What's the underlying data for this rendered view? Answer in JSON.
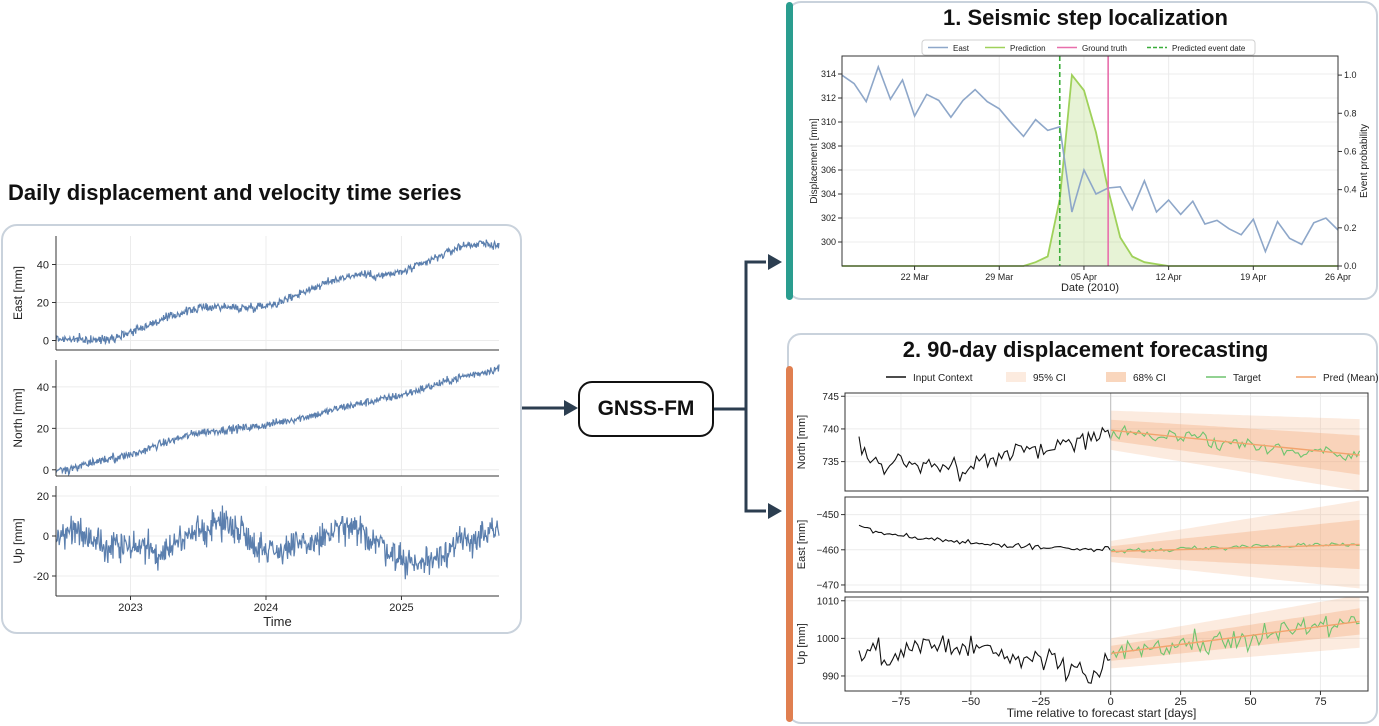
{
  "left_title": "Daily displacement and velocity time series",
  "model_label": "GNSS-FM",
  "colors": {
    "series_blue": "#5b7fae",
    "east_light": "#8ea7c9",
    "prediction_green": "#9fd15a",
    "ground_truth": "#e86fab",
    "predicted_date": "#3aad3a",
    "input_black": "#111111",
    "target_green": "#6ec46e",
    "pred_orange": "#f2a36d",
    "teal_accent": "#2a9d8f",
    "orange_accent": "#e07f50",
    "arrow": "#2c3e50"
  },
  "panel1_title": "1. Seismic step localization",
  "panel2_title": "2. 90-day displacement forecasting",
  "chart_data": [
    {
      "type": "line",
      "title": "",
      "xlabel": "Time",
      "x_ticks": [
        "2023",
        "2024",
        "2025"
      ],
      "x_range": [
        2022.45,
        2025.72
      ],
      "series": [
        {
          "ylabel": "East [mm]",
          "ylim": [
            -5,
            55
          ],
          "yticks": [
            0,
            20,
            40
          ],
          "x": [
            2022.45,
            2022.6,
            2022.75,
            2022.9,
            2023.05,
            2023.2,
            2023.35,
            2023.5,
            2023.65,
            2023.8,
            2023.95,
            2024.1,
            2024.25,
            2024.4,
            2024.55,
            2024.7,
            2024.85,
            2025.0,
            2025.15,
            2025.3,
            2025.45,
            2025.6,
            2025.72
          ],
          "values": [
            1,
            0.5,
            0,
            2,
            6,
            10,
            14,
            17,
            18,
            17,
            18,
            20,
            25,
            29,
            33,
            35,
            34,
            36,
            40,
            45,
            50,
            51,
            50
          ]
        },
        {
          "ylabel": "North [mm]",
          "ylim": [
            -3,
            53
          ],
          "yticks": [
            0,
            20,
            40
          ],
          "x": [
            2022.45,
            2022.6,
            2022.75,
            2022.9,
            2023.05,
            2023.2,
            2023.35,
            2023.5,
            2023.65,
            2023.8,
            2023.95,
            2024.1,
            2024.25,
            2024.4,
            2024.55,
            2024.7,
            2024.85,
            2025.0,
            2025.15,
            2025.3,
            2025.45,
            2025.6,
            2025.72
          ],
          "values": [
            -1,
            1,
            4,
            6,
            8,
            12,
            15,
            18,
            19,
            20,
            21,
            23,
            25,
            27,
            30,
            32,
            34,
            36,
            39,
            42,
            45,
            47,
            49
          ]
        },
        {
          "ylabel": "Up [mm]",
          "ylim": [
            -30,
            25
          ],
          "yticks": [
            -20,
            0,
            20
          ],
          "x": [
            2022.45,
            2022.6,
            2022.75,
            2022.9,
            2023.05,
            2023.2,
            2023.35,
            2023.5,
            2023.65,
            2023.8,
            2023.95,
            2024.1,
            2024.25,
            2024.4,
            2024.55,
            2024.7,
            2024.85,
            2025.0,
            2025.15,
            2025.3,
            2025.45,
            2025.6,
            2025.72
          ],
          "values": [
            0,
            3,
            -2,
            -6,
            -5,
            -8,
            -3,
            2,
            7,
            4,
            -6,
            -7,
            -5,
            -2,
            4,
            2,
            -4,
            -12,
            -14,
            -8,
            -3,
            0,
            2
          ]
        }
      ]
    },
    {
      "type": "line",
      "title": "",
      "xlabel": "Date (2010)",
      "ylabel": "Displacement [mm]",
      "y2label": "Event probability",
      "legend": [
        "East",
        "Prediction",
        "Ground truth",
        "Predicted event date"
      ],
      "legend_position": "top",
      "x_ticks": [
        "22 Mar",
        "29 Mar",
        "05 Apr",
        "12 Apr",
        "19 Apr",
        "26 Apr"
      ],
      "x_tick_days": [
        22,
        29,
        36,
        43,
        50,
        57
      ],
      "x_range": [
        16,
        57
      ],
      "ylim": [
        298,
        315.5
      ],
      "yticks": [
        300,
        302,
        304,
        306,
        308,
        310,
        312,
        314
      ],
      "y2lim": [
        0,
        1.1
      ],
      "y2ticks": [
        0.0,
        0.2,
        0.4,
        0.6,
        0.8,
        1.0
      ],
      "y2tick_labels": [
        "0.0",
        "0.2",
        "0.4",
        "0.6",
        "0.8",
        "1.0"
      ],
      "east_x": [
        16,
        17,
        18,
        19,
        20,
        21,
        22,
        23,
        24,
        25,
        26,
        27,
        28,
        29,
        30,
        31,
        32,
        33,
        34,
        35,
        36,
        37,
        38,
        39,
        40,
        41,
        42,
        43,
        44,
        45,
        46,
        47,
        48,
        49,
        50,
        51,
        52,
        53,
        54,
        55,
        56,
        57
      ],
      "east_y": [
        313.9,
        313.2,
        311.7,
        314.6,
        311.9,
        313.5,
        310.5,
        312.3,
        311.8,
        310.4,
        311.8,
        312.7,
        311.7,
        311.1,
        309.9,
        308.8,
        310.2,
        309.3,
        309.6,
        302.5,
        306.0,
        304.0,
        304.5,
        304.6,
        302.7,
        305.1,
        302.5,
        303.5,
        302.3,
        303.4,
        301.5,
        301.8,
        301.1,
        300.6,
        301.9,
        299.2,
        301.7,
        300.3,
        299.8,
        301.6,
        302.0,
        301.0
      ],
      "prediction_x": [
        31,
        32,
        33,
        34,
        35,
        36,
        37,
        38,
        39,
        40,
        41,
        42,
        43,
        44,
        45,
        46,
        47,
        48,
        49,
        50,
        51,
        52,
        53,
        54,
        55,
        56,
        57
      ],
      "prediction_y": [
        0,
        0.02,
        0.05,
        0.35,
        1.0,
        0.92,
        0.7,
        0.4,
        0.15,
        0.05,
        0.02,
        0.01,
        0,
        0,
        0,
        0,
        0,
        0,
        0,
        0,
        0,
        0,
        0,
        0,
        0,
        0,
        0
      ],
      "ground_truth_day": 38,
      "predicted_event_day": 34
    },
    {
      "type": "line",
      "title": "",
      "xlabel": "Time relative to forecast start [days]",
      "legend": [
        "Input Context",
        "95% CI",
        "68% CI",
        "Target",
        "Pred (Mean)"
      ],
      "legend_position": "top",
      "x_range": [
        -95,
        92
      ],
      "x_ticks": [
        -75,
        -50,
        -25,
        0,
        25,
        50,
        75
      ],
      "x_tick_labels": [
        "−75",
        "−50",
        "−25",
        "0",
        "25",
        "50",
        "75"
      ],
      "panels": [
        {
          "ylabel": "North [mm]",
          "ylim": [
            730.5,
            745.5
          ],
          "yticks": [
            735,
            740,
            745
          ],
          "context": [
            738,
            734.5,
            735,
            733.5,
            735.5,
            734.5,
            735,
            734,
            735,
            734.5,
            735,
            733,
            734.5,
            735.5,
            735,
            736,
            736.5,
            736.5,
            737,
            737,
            736.5,
            737.5,
            738,
            737.5,
            738.5,
            738.5,
            739,
            739.5
          ],
          "target": [
            739.5,
            739.5,
            739.5,
            739,
            738.8,
            739,
            739,
            738.5,
            738.5,
            738,
            738,
            737.8,
            737.5,
            737,
            737,
            736.5,
            736.5,
            736.5,
            736.5,
            736.5,
            736,
            736.5
          ],
          "mean_start": 739.8,
          "mean_end": 736.0,
          "ci68_start": 1.6,
          "ci68_end": 3.0,
          "ci95_start": 3.0,
          "ci95_end": 5.5
        },
        {
          "ylabel": "East [mm]",
          "ylim": [
            -472,
            -445
          ],
          "yticks": [
            -450,
            -460,
            -470
          ],
          "context": [
            -453.5,
            -454,
            -455,
            -455.5,
            -456,
            -456,
            -456.5,
            -457,
            -457,
            -457.5,
            -457.5,
            -458,
            -458,
            -458,
            -458.5,
            -458.5,
            -459,
            -459,
            -459,
            -459,
            -459.5,
            -459.5,
            -459.5,
            -460,
            -460,
            -460,
            -460,
            -460
          ],
          "target": [
            -460,
            -460.5,
            -460,
            -460.5,
            -460,
            -460,
            -459.5,
            -459.5,
            -459.5,
            -459.5,
            -459.5,
            -459,
            -459,
            -459,
            -459,
            -459,
            -458.5,
            -458.5,
            -458.5,
            -458.5,
            -458.5,
            -458.5
          ],
          "mean_start": -460.5,
          "mean_end": -458.5,
          "ci68_start": 1.5,
          "ci68_end": 7.0,
          "ci95_start": 3.0,
          "ci95_end": 12.5
        },
        {
          "ylabel": "Up [mm]",
          "ylim": [
            986,
            1011
          ],
          "yticks": [
            990,
            1000,
            1010
          ],
          "context": [
            995,
            996,
            997,
            994,
            997,
            998,
            996,
            999,
            998,
            999,
            996,
            997,
            998,
            996,
            997,
            996,
            995,
            995,
            994,
            996,
            994,
            993,
            992,
            993,
            991,
            990,
            992,
            995
          ],
          "target": [
            995,
            996,
            997,
            997,
            998,
            997,
            998,
            999,
            999,
            1000,
            1000,
            1000,
            1000,
            1001,
            1001,
            1002,
            1002,
            1002,
            1003,
            1003,
            1004,
            1004
          ],
          "mean_start": 996.0,
          "mean_end": 1004.5,
          "ci68_start": 2.0,
          "ci68_end": 3.5,
          "ci95_start": 4.0,
          "ci95_end": 7.0
        }
      ]
    }
  ]
}
